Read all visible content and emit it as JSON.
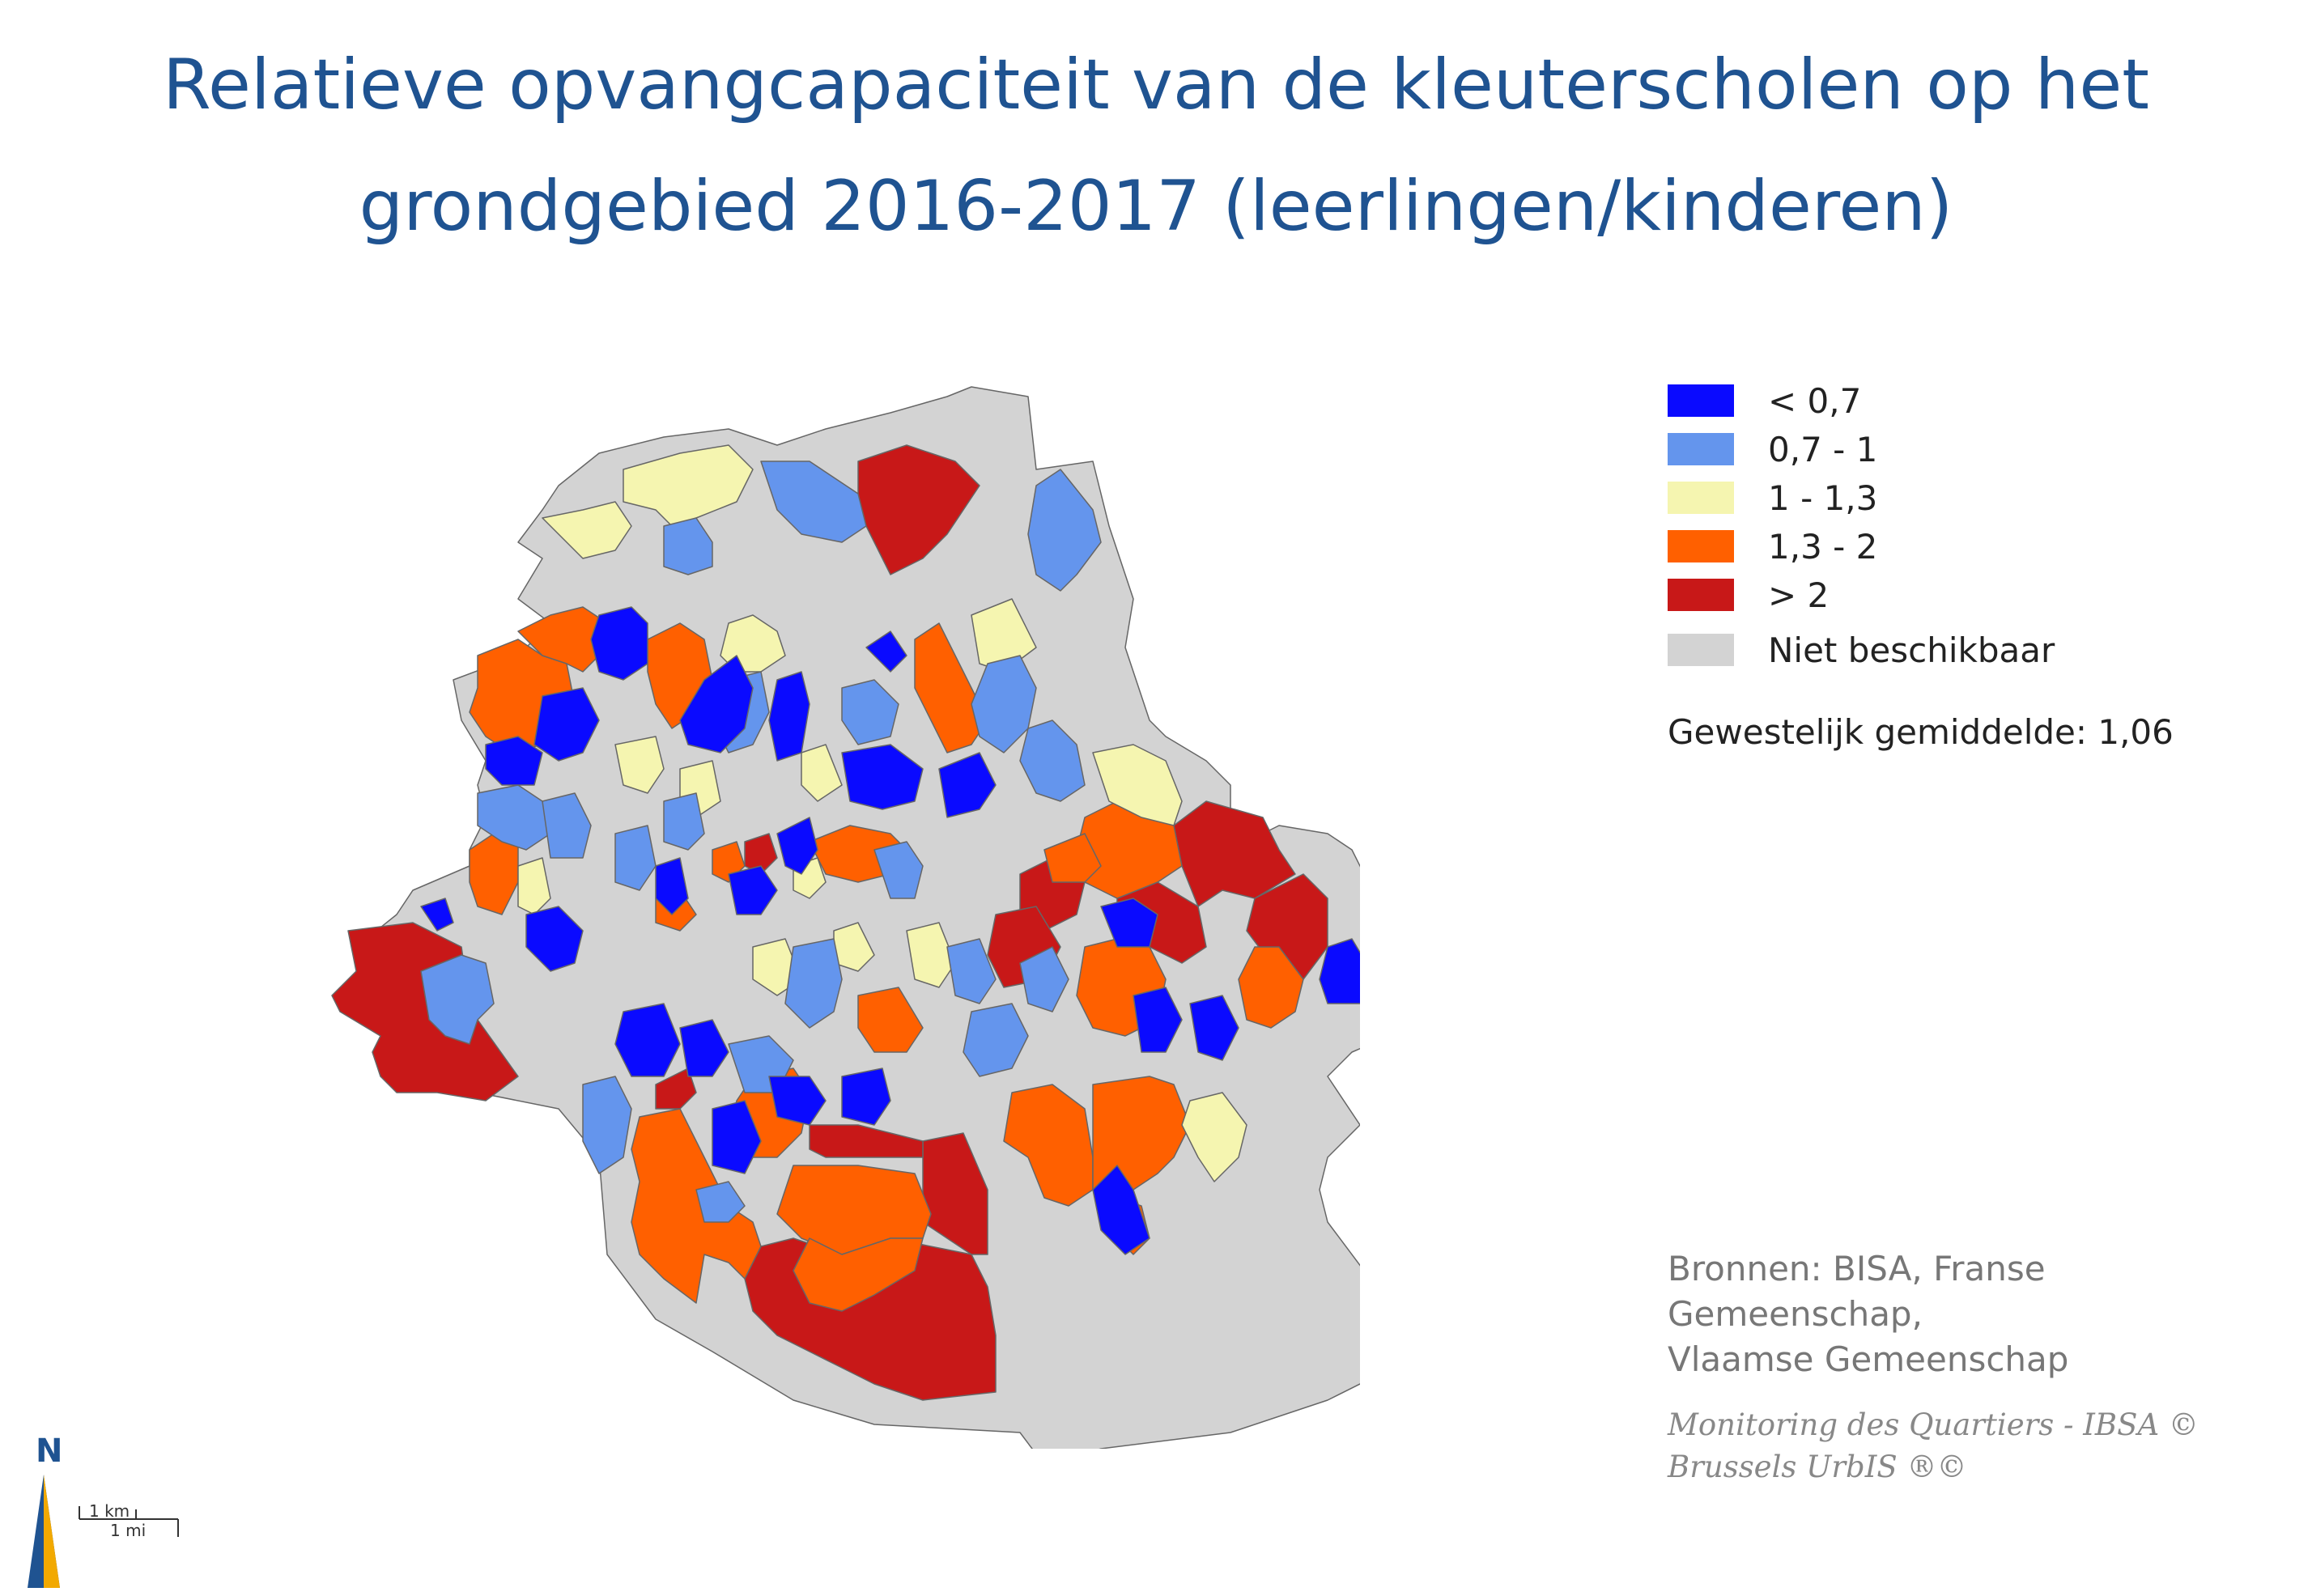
{
  "title": {
    "line1": "Relatieve opvangcapaciteit van de kleuterscholen op het",
    "line2": "grondgebied 2016-2017 (leerlingen/kinderen)"
  },
  "legend": {
    "items": [
      {
        "label": "< 0,7",
        "color": "#0a0aff"
      },
      {
        "label": "0,7 - 1",
        "color": "#6495ed"
      },
      {
        "label": "1 - 1,3",
        "color": "#f5f5b0"
      },
      {
        "label": "1,3 - 2",
        "color": "#ff6000"
      },
      {
        "label": "> 2",
        "color": "#c81818"
      },
      {
        "label": "Niet beschikbaar",
        "color": "#d3d3d3"
      }
    ]
  },
  "average": "Gewestelijk gemiddelde: 1,06",
  "sources": {
    "line1": "Bronnen: BISA, Franse Gemeenschap,",
    "line2": "Vlaamse Gemeenschap"
  },
  "credit": {
    "line1": "Monitoring des Quartiers - IBSA ©",
    "line2": "Brussels UrbIS ®©"
  },
  "north_label": "N",
  "scale": {
    "km": "1 km",
    "mi": "1 mi"
  },
  "colors": {
    "title": "#1f5391",
    "border": "#666666"
  }
}
